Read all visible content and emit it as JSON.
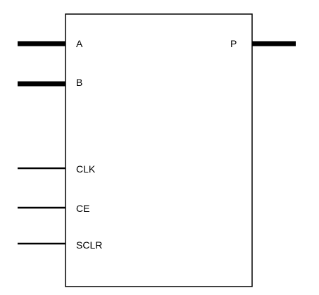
{
  "block": {
    "inputs": [
      {
        "label": "A",
        "bus": true
      },
      {
        "label": "B",
        "bus": true
      },
      {
        "label": "CLK",
        "bus": false
      },
      {
        "label": "CE",
        "bus": false
      },
      {
        "label": "SCLR",
        "bus": false
      }
    ],
    "outputs": [
      {
        "label": "P",
        "bus": true
      }
    ]
  },
  "colors": {
    "line": "#000000",
    "background": "#ffffff"
  }
}
